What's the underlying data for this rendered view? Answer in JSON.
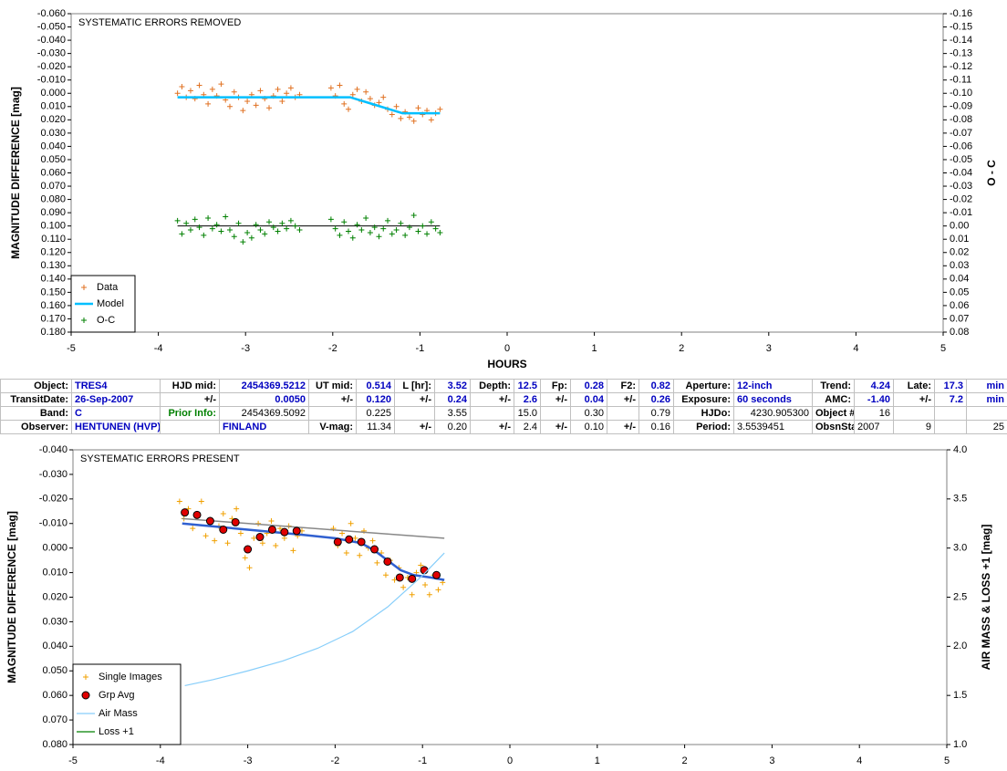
{
  "chart_data": [
    {
      "type": "scatter",
      "title": "SYSTEMATIC ERRORS REMOVED",
      "y_label": "MAGNITUDE DIFFERENCE [mag]",
      "x_label": "HOURS",
      "y2_label": "O - C",
      "xlim": [
        -5,
        5
      ],
      "xticks": [
        -5,
        -4,
        -3,
        -2,
        -1,
        0,
        1,
        2,
        3,
        4,
        5
      ],
      "ylim": [
        -0.06,
        0.18
      ],
      "y_inverted": true,
      "yticks": [
        {
          "value": -0.06,
          "label": "-0.060"
        },
        {
          "value": -0.05,
          "label": "-0.050"
        },
        {
          "value": -0.04,
          "label": "-0.040"
        },
        {
          "value": -0.03,
          "label": "-0.030"
        },
        {
          "value": -0.02,
          "label": "-0.020"
        },
        {
          "value": -0.01,
          "label": "-0.010"
        },
        {
          "value": 0,
          "label": "0.000"
        },
        {
          "value": 0.01,
          "label": "0.010"
        },
        {
          "value": 0.02,
          "label": "0.020"
        },
        {
          "value": 0.03,
          "label": "0.030"
        },
        {
          "value": 0.04,
          "label": "0.040"
        },
        {
          "value": 0.05,
          "label": "0.050"
        },
        {
          "value": 0.06,
          "label": "0.060"
        },
        {
          "value": 0.07,
          "label": "0.070"
        },
        {
          "value": 0.08,
          "label": "0.080"
        },
        {
          "value": 0.09,
          "label": "0.090"
        },
        {
          "value": 0.1,
          "label": "0.100"
        },
        {
          "value": 0.11,
          "label": "0.110"
        },
        {
          "value": 0.12,
          "label": "0.120"
        },
        {
          "value": 0.13,
          "label": "0.130"
        },
        {
          "value": 0.14,
          "label": "0.140"
        },
        {
          "value": 0.15,
          "label": "0.150"
        },
        {
          "value": 0.16,
          "label": "0.160"
        },
        {
          "value": 0.17,
          "label": "0.170"
        },
        {
          "value": 0.18,
          "label": "0.180"
        }
      ],
      "y2lim": [
        -0.16,
        0.08
      ],
      "y2_inverted": true,
      "y2ticks": [
        -0.16,
        -0.15,
        -0.14,
        -0.13,
        -0.12,
        -0.11,
        {
          "value": -0.1,
          "label": "-0.10"
        },
        -0.09,
        -0.08,
        -0.07,
        -0.06,
        -0.05,
        -0.04,
        -0.03,
        -0.02,
        -0.01,
        {
          "value": 0,
          "label": "0.00"
        },
        0.01,
        0.02,
        0.03,
        0.04,
        0.05,
        0.06,
        0.07,
        0.08
      ],
      "legend": "lower left",
      "series": [
        {
          "name": "Data",
          "color": "#e07020",
          "marker": "plus",
          "x": [
            -3.78,
            -3.73,
            -3.68,
            -3.63,
            -3.58,
            -3.53,
            -3.48,
            -3.43,
            -3.38,
            -3.33,
            -3.28,
            -3.23,
            -3.18,
            -3.13,
            -3.08,
            -3.03,
            -2.98,
            -2.93,
            -2.88,
            -2.83,
            -2.78,
            -2.73,
            -2.68,
            -2.63,
            -2.58,
            -2.53,
            -2.48,
            -2.43,
            -2.38,
            -2.02,
            -1.97,
            -1.92,
            -1.87,
            -1.82,
            -1.77,
            -1.72,
            -1.67,
            -1.62,
            -1.57,
            -1.52,
            -1.47,
            -1.42,
            -1.37,
            -1.32,
            -1.27,
            -1.22,
            -1.17,
            -1.12,
            -1.07,
            -1.02,
            -0.97,
            -0.92,
            -0.87,
            -0.82,
            -0.77
          ],
          "values": [
            0.0,
            -0.005,
            0.003,
            -0.002,
            0.004,
            -0.006,
            0.001,
            0.008,
            -0.003,
            0.002,
            -0.007,
            0.005,
            0.01,
            -0.001,
            0.003,
            0.013,
            0.006,
            0.001,
            0.009,
            -0.002,
            0.004,
            0.011,
            0.002,
            -0.003,
            0.006,
            0.0,
            -0.004,
            0.003,
            0.001,
            -0.004,
            0.002,
            -0.006,
            0.008,
            0.012,
            0.001,
            -0.003,
            0.006,
            -0.001,
            0.004,
            0.009,
            0.007,
            0.003,
            0.012,
            0.016,
            0.01,
            0.019,
            0.014,
            0.018,
            0.021,
            0.011,
            0.016,
            0.013,
            0.02,
            0.015,
            0.012
          ]
        },
        {
          "name": "Model",
          "color": "#00bfff",
          "marker": "line",
          "x": [
            -3.78,
            -2.0,
            -1.8,
            -1.55,
            -1.3,
            -1.2,
            -0.77
          ],
          "values": [
            0.003,
            0.003,
            0.003,
            0.008,
            0.013,
            0.015,
            0.015
          ]
        },
        {
          "name": "O-C",
          "color": "#008000",
          "marker": "plus",
          "axis": "y2",
          "baseline": true,
          "baseline_color": "#000000",
          "x": [
            -3.78,
            -3.73,
            -3.68,
            -3.63,
            -3.58,
            -3.53,
            -3.48,
            -3.43,
            -3.38,
            -3.33,
            -3.28,
            -3.23,
            -3.18,
            -3.13,
            -3.08,
            -3.03,
            -2.98,
            -2.93,
            -2.88,
            -2.83,
            -2.78,
            -2.73,
            -2.68,
            -2.63,
            -2.58,
            -2.53,
            -2.48,
            -2.43,
            -2.38,
            -2.02,
            -1.97,
            -1.92,
            -1.87,
            -1.82,
            -1.77,
            -1.72,
            -1.67,
            -1.62,
            -1.57,
            -1.52,
            -1.47,
            -1.42,
            -1.37,
            -1.32,
            -1.27,
            -1.22,
            -1.17,
            -1.12,
            -1.07,
            -1.02,
            -0.97,
            -0.92,
            -0.87,
            -0.82,
            -0.77
          ],
          "values": [
            -0.004,
            0.006,
            -0.002,
            0.003,
            -0.005,
            0.001,
            0.007,
            -0.006,
            0.002,
            -0.001,
            0.004,
            -0.007,
            0.003,
            0.008,
            -0.002,
            0.012,
            0.005,
            0.009,
            -0.001,
            0.003,
            0.006,
            -0.003,
            0.001,
            0.004,
            -0.002,
            0.002,
            -0.004,
            0.0,
            0.003,
            -0.005,
            0.002,
            0.007,
            -0.003,
            0.004,
            0.009,
            -0.001,
            0.003,
            -0.006,
            0.005,
            0.001,
            0.008,
            0.002,
            -0.004,
            0.006,
            0.003,
            -0.002,
            0.007,
            0.001,
            -0.008,
            0.004,
            0.0,
            0.006,
            -0.003,
            0.002,
            0.005
          ]
        }
      ]
    },
    {
      "type": "scatter",
      "title": "SYSTEMATIC ERRORS PRESENT",
      "y_label": "MAGNITUDE DIFFERENCE [mag]",
      "y2_label": "AIR MASS & LOSS +1 [mag]",
      "xlim": [
        -5,
        5
      ],
      "xticks": [
        -5,
        -4,
        -3,
        -2,
        -1,
        0,
        1,
        2,
        3,
        4,
        5
      ],
      "ylim": [
        -0.04,
        0.08
      ],
      "y_inverted": true,
      "yticks": [
        {
          "value": -0.04,
          "label": "-0.040"
        },
        {
          "value": -0.03,
          "label": "-0.030"
        },
        {
          "value": -0.02,
          "label": "-0.020"
        },
        {
          "value": -0.01,
          "label": "-0.010"
        },
        {
          "value": 0,
          "label": "0.000"
        },
        {
          "value": 0.01,
          "label": "0.010"
        },
        {
          "value": 0.02,
          "label": "0.020"
        },
        {
          "value": 0.03,
          "label": "0.030"
        },
        {
          "value": 0.04,
          "label": "0.040"
        },
        {
          "value": 0.05,
          "label": "0.050"
        },
        {
          "value": 0.06,
          "label": "0.060"
        },
        {
          "value": 0.07,
          "label": "0.070"
        },
        {
          "value": 0.08,
          "label": "0.080"
        }
      ],
      "y2lim": [
        1,
        4
      ],
      "y2_inverted": false,
      "y2ticks": [
        {
          "value": 1,
          "label": "1.0"
        },
        1.5,
        {
          "value": 2,
          "label": "2.0"
        },
        2.5,
        {
          "value": 3,
          "label": "3.0"
        },
        3.5,
        {
          "value": 4,
          "label": "4.0"
        }
      ],
      "legend": "lower left",
      "series": [
        {
          "name": "Single Images",
          "color": "#f0a000",
          "marker": "plus",
          "x": [
            -3.78,
            -3.73,
            -3.68,
            -3.63,
            -3.58,
            -3.53,
            -3.48,
            -3.43,
            -3.38,
            -3.33,
            -3.28,
            -3.23,
            -3.18,
            -3.13,
            -3.08,
            -3.03,
            -2.98,
            -2.93,
            -2.88,
            -2.83,
            -2.78,
            -2.73,
            -2.68,
            -2.63,
            -2.58,
            -2.53,
            -2.48,
            -2.43,
            -2.38,
            -2.02,
            -1.97,
            -1.92,
            -1.87,
            -1.82,
            -1.77,
            -1.72,
            -1.67,
            -1.62,
            -1.57,
            -1.52,
            -1.47,
            -1.42,
            -1.37,
            -1.32,
            -1.27,
            -1.22,
            -1.17,
            -1.12,
            -1.07,
            -1.02,
            -0.97,
            -0.92,
            -0.87,
            -0.82,
            -0.77
          ],
          "values": [
            -0.019,
            -0.012,
            -0.016,
            -0.008,
            -0.013,
            -0.019,
            -0.005,
            -0.011,
            -0.003,
            -0.009,
            -0.014,
            -0.002,
            -0.012,
            -0.016,
            -0.006,
            0.004,
            0.008,
            -0.004,
            -0.01,
            -0.002,
            -0.006,
            -0.011,
            -0.001,
            -0.008,
            -0.004,
            -0.009,
            0.001,
            -0.005,
            -0.007,
            -0.008,
            -0.001,
            -0.006,
            0.002,
            -0.01,
            -0.004,
            0.003,
            -0.007,
            0.0,
            -0.003,
            0.006,
            0.002,
            0.011,
            0.005,
            0.013,
            0.008,
            0.016,
            0.012,
            0.019,
            0.01,
            0.007,
            0.015,
            0.019,
            0.011,
            0.017,
            0.014
          ]
        },
        {
          "color": "#888888",
          "marker": "line",
          "x": [
            -3.75,
            -0.75
          ],
          "values": [
            -0.012,
            -0.004
          ]
        },
        {
          "color": "#3060d0",
          "marker": "line",
          "x": [
            -3.75,
            -3.0,
            -2.4,
            -2.0,
            -1.7,
            -1.55,
            -1.4,
            -1.25,
            -1.1,
            -0.9,
            -0.75
          ],
          "values": [
            -0.01,
            -0.0075,
            -0.0055,
            -0.004,
            -0.002,
            0.001,
            0.005,
            0.009,
            0.011,
            0.012,
            0.013
          ]
        },
        {
          "name": "Grp Avg",
          "color": "#e00000",
          "marker": "circle",
          "x": [
            -3.72,
            -3.58,
            -3.43,
            -3.28,
            -3.14,
            -3.0,
            -2.86,
            -2.72,
            -2.58,
            -2.44,
            -1.97,
            -1.84,
            -1.7,
            -1.55,
            -1.4,
            -1.26,
            -1.12,
            -0.98,
            -0.84
          ],
          "values": [
            -0.0145,
            -0.0135,
            -0.011,
            -0.0075,
            -0.0105,
            0.0005,
            -0.0045,
            -0.0075,
            -0.0065,
            -0.007,
            -0.0025,
            -0.0035,
            -0.0025,
            0.0005,
            0.0055,
            0.012,
            0.0125,
            0.009,
            0.011
          ],
          "errors": [
            0.0015,
            0.0015,
            0.0015,
            0.0015,
            0.0015,
            0.0015,
            0.0015,
            0.0015,
            0.0015,
            0.0015,
            0.0015,
            0.0015,
            0.0015,
            0.0015,
            0.0015,
            0.0015,
            0.0015,
            0.0015,
            0.0015
          ]
        },
        {
          "name": "Air Mass",
          "color": "#87cefa",
          "marker": "line",
          "axis": "y2",
          "x": [
            -3.72,
            -3.4,
            -3.0,
            -2.6,
            -2.2,
            -1.8,
            -1.4,
            -1.0,
            -0.75
          ],
          "values": [
            1.6,
            1.66,
            1.75,
            1.85,
            1.98,
            2.15,
            2.4,
            2.72,
            2.95
          ]
        },
        {
          "name": "Loss +1",
          "color": "#008000",
          "marker": "line",
          "axis": "y2",
          "x": [],
          "values": []
        }
      ]
    }
  ],
  "table": {
    "rows": [
      [
        "Object:",
        "TRES4",
        "HJD mid:",
        "2454369.5212",
        "UT mid:",
        "0.514",
        "L [hr]:",
        "3.52",
        "Depth:",
        "12.5",
        "Fp:",
        "0.28",
        "F2:",
        "0.82",
        "Aperture:",
        "12-inch",
        "Trend:",
        "4.24",
        "Late:",
        "17.3",
        "min"
      ],
      [
        "TransitDate:",
        "26-Sep-2007",
        "+/-",
        "0.0050",
        "+/-",
        "0.120",
        "+/-",
        "0.24",
        "+/-",
        "2.6",
        "+/-",
        "0.04",
        "+/-",
        "0.26",
        "Exposure:",
        "60 seconds",
        "AMC:",
        "-1.40",
        "+/-",
        "7.2",
        "min"
      ],
      [
        "Band:",
        "C",
        "Prior Info:",
        "2454369.5092",
        null,
        "0.225",
        null,
        "3.55",
        null,
        "15.0",
        null,
        "0.30",
        null,
        "0.79",
        "HJDo:",
        "4230.905300",
        "Object #:",
        "16",
        null,
        null,
        null
      ],
      [
        "Observer:",
        "HENTUNEN (HVP)",
        null,
        "FINLAND",
        "V-mag:",
        "11.34",
        "+/-",
        "0.20",
        "+/-",
        "2.4",
        "+/-",
        "0.10",
        "+/-",
        "0.16",
        "Period:",
        "3.5539451",
        "ObsnStartDate:",
        "2007",
        "9",
        null,
        "25"
      ]
    ]
  }
}
